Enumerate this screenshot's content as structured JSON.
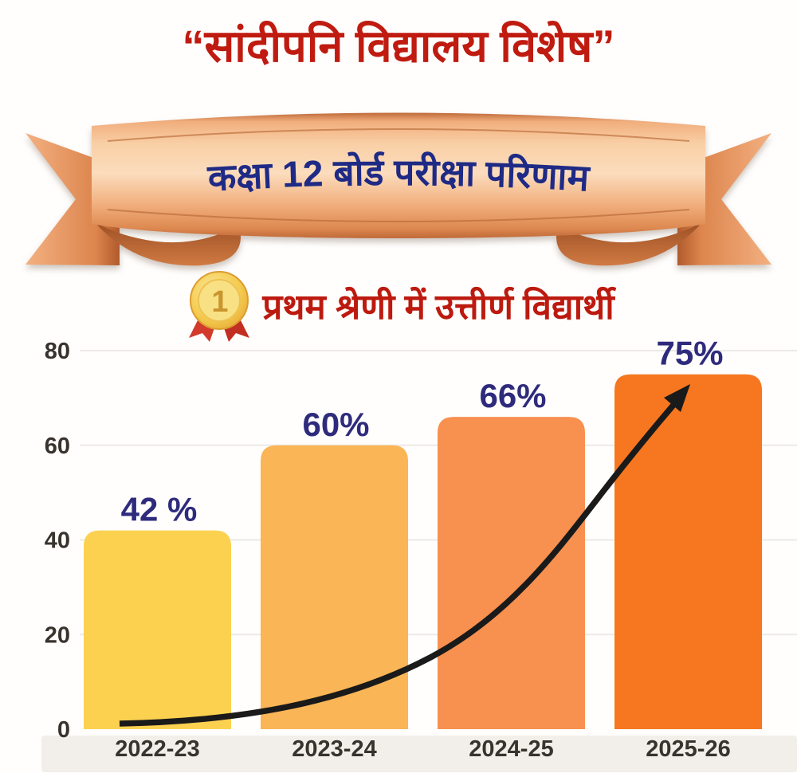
{
  "page": {
    "background": "#fffefd"
  },
  "header": {
    "title": "“सांदीपनि विद्यालय विशेष”",
    "title_color": "#c01b10"
  },
  "banner": {
    "text": "कक्षा 12 बोर्ड परीक्षा परिणाम",
    "text_color": "#1e2a85",
    "ribbon_color": "#e89257"
  },
  "subtitle": {
    "medal_icon": "first-place-medal-icon",
    "medal_number": "1",
    "text": "प्रथम श्रेणी में उत्तीर्ण विद्यार्थी",
    "text_color": "#bd1a0f"
  },
  "chart_data": {
    "type": "bar",
    "title": "प्रथम श्रेणी में उत्तीर्ण विद्यार्थी",
    "categories": [
      "2022-23",
      "2023-24",
      "2024-25",
      "2025-26"
    ],
    "values": [
      42,
      60,
      66,
      75
    ],
    "value_labels": [
      "42 %",
      "60%",
      "66%",
      "75%"
    ],
    "bar_colors": [
      "#fcd150",
      "#fab556",
      "#f8904f",
      "#f6771f"
    ],
    "xlabel": "",
    "ylabel": "",
    "ylim": [
      0,
      80
    ],
    "y_ticks": [
      0,
      20,
      40,
      60,
      80
    ],
    "grid": true,
    "legend": false,
    "value_label_color": "#2f2b7c",
    "axis_label_color": "#38332d",
    "gridline_color": "#edeae6",
    "baseline_band_color": "#f2efea",
    "trend_arrow": true,
    "trend_arrow_color": "#1a1a1a"
  }
}
